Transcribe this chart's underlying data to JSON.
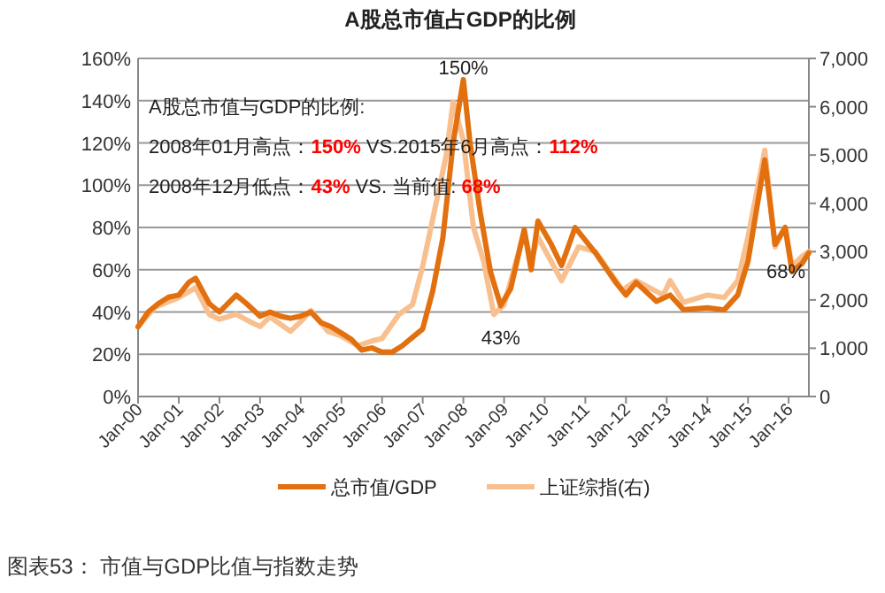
{
  "chart_data": {
    "type": "line",
    "title": "A股总市值占GDP的比例",
    "xlim": [
      "2000-01",
      "2016-07"
    ],
    "xticks": [
      {
        "value": "2000-01",
        "label": "Jan-00"
      },
      {
        "value": "2001-01",
        "label": "Jan-01"
      },
      {
        "value": "2002-01",
        "label": "Jan-02"
      },
      {
        "value": "2003-01",
        "label": "Jan-03"
      },
      {
        "value": "2004-01",
        "label": "Jan-04"
      },
      {
        "value": "2005-01",
        "label": "Jan-05"
      },
      {
        "value": "2006-01",
        "label": "Jan-06"
      },
      {
        "value": "2007-01",
        "label": "Jan-07"
      },
      {
        "value": "2008-01",
        "label": "Jan-08"
      },
      {
        "value": "2009-01",
        "label": "Jan-09"
      },
      {
        "value": "2010-01",
        "label": "Jan-10"
      },
      {
        "value": "2011-01",
        "label": "Jan-11"
      },
      {
        "value": "2012-01",
        "label": "Jan-12"
      },
      {
        "value": "2013-01",
        "label": "Jan-13"
      },
      {
        "value": "2014-01",
        "label": "Jan-14"
      },
      {
        "value": "2015-01",
        "label": "Jan-15"
      },
      {
        "value": "2016-01",
        "label": "Jan-16"
      }
    ],
    "ylim": [
      0,
      160
    ],
    "yticks": [
      {
        "value": 0,
        "label": "0%"
      },
      {
        "value": 20,
        "label": "20%"
      },
      {
        "value": 40,
        "label": "40%"
      },
      {
        "value": 60,
        "label": "60%"
      },
      {
        "value": 80,
        "label": "80%"
      },
      {
        "value": 100,
        "label": "100%"
      },
      {
        "value": 120,
        "label": "120%"
      },
      {
        "value": 140,
        "label": "140%"
      },
      {
        "value": 160,
        "label": "160%"
      }
    ],
    "y2lim": [
      0,
      7000
    ],
    "y2ticks": [
      {
        "value": 0,
        "label": "0"
      },
      {
        "value": 1000,
        "label": "1,000"
      },
      {
        "value": 2000,
        "label": "2,000"
      },
      {
        "value": 3000,
        "label": "3,000"
      },
      {
        "value": 4000,
        "label": "4,000"
      },
      {
        "value": 5000,
        "label": "5,000"
      },
      {
        "value": 6000,
        "label": "6,000"
      },
      {
        "value": 7000,
        "label": "7,000"
      }
    ],
    "grid": "y",
    "legend": "bottom",
    "series": [
      {
        "name": "上证综指(右)",
        "color": "#f9c08f",
        "axis": "y2",
        "x": [
          "2000-01",
          "2000-06",
          "2001-01",
          "2001-06",
          "2001-10",
          "2002-01",
          "2002-06",
          "2002-10",
          "2003-01",
          "2003-04",
          "2003-10",
          "2004-01",
          "2004-04",
          "2004-09",
          "2005-01",
          "2005-06",
          "2005-10",
          "2006-01",
          "2006-06",
          "2006-10",
          "2007-01",
          "2007-05",
          "2007-08",
          "2007-10",
          "2008-01",
          "2008-04",
          "2008-07",
          "2008-10",
          "2009-01",
          "2009-07",
          "2009-09",
          "2009-11",
          "2010-06",
          "2010-11",
          "2011-04",
          "2011-10",
          "2011-12",
          "2012-04",
          "2012-12",
          "2013-02",
          "2013-06",
          "2014-01",
          "2014-06",
          "2014-10",
          "2015-01",
          "2015-06",
          "2015-09",
          "2015-12",
          "2016-02",
          "2016-05",
          "2016-07"
        ],
        "values": [
          1450,
          1850,
          2050,
          2250,
          1700,
          1600,
          1700,
          1550,
          1450,
          1650,
          1350,
          1550,
          1780,
          1350,
          1250,
          1050,
          1150,
          1200,
          1700,
          1900,
          2700,
          4000,
          5000,
          6100,
          5300,
          3500,
          2800,
          1700,
          1900,
          3400,
          2800,
          3300,
          2400,
          3100,
          3000,
          2400,
          2200,
          2400,
          2100,
          2400,
          1950,
          2100,
          2050,
          2400,
          3300,
          5100,
          3100,
          3500,
          2700,
          2900,
          3000
        ]
      },
      {
        "name": "总市值/GDP",
        "color": "#e2700f",
        "axis": "y",
        "x": [
          "2000-01",
          "2000-04",
          "2000-07",
          "2000-10",
          "2001-01",
          "2001-04",
          "2001-06",
          "2001-08",
          "2001-10",
          "2002-01",
          "2002-06",
          "2002-09",
          "2003-01",
          "2003-04",
          "2003-07",
          "2003-10",
          "2004-01",
          "2004-04",
          "2004-07",
          "2004-10",
          "2005-01",
          "2005-04",
          "2005-07",
          "2005-10",
          "2006-01",
          "2006-04",
          "2006-07",
          "2006-10",
          "2007-01",
          "2007-04",
          "2007-07",
          "2007-10",
          "2008-01",
          "2008-03",
          "2008-06",
          "2008-09",
          "2008-12",
          "2009-03",
          "2009-07",
          "2009-09",
          "2009-11",
          "2010-03",
          "2010-06",
          "2010-10",
          "2011-04",
          "2011-10",
          "2012-01",
          "2012-04",
          "2012-10",
          "2013-02",
          "2013-06",
          "2014-01",
          "2014-06",
          "2014-10",
          "2015-01",
          "2015-06",
          "2015-09",
          "2015-12",
          "2016-02",
          "2016-05",
          "2016-07"
        ],
        "values": [
          33,
          40,
          44,
          47,
          48,
          54,
          56,
          50,
          44,
          40,
          48,
          44,
          38,
          40,
          38,
          37,
          38,
          40,
          35,
          33,
          30,
          27,
          22,
          23,
          21,
          21,
          24,
          28,
          32,
          50,
          75,
          120,
          150,
          120,
          87,
          59,
          43,
          51,
          79,
          60,
          83,
          72,
          62,
          80,
          68,
          54,
          48,
          54,
          45,
          48,
          41,
          42,
          41,
          48,
          64,
          112,
          72,
          80,
          59,
          63,
          68
        ]
      }
    ],
    "annotations": [
      "A股总市值与GDP的比例:",
      "2008年01月高点：150% VS.2015年6月高点：112%",
      "2008年12月低点：43% VS. 当前值: 68%",
      {
        "text": "150%",
        "x": "2008-01",
        "y": 150
      },
      {
        "text": "43%",
        "x": "2008-12",
        "y": 43
      },
      {
        "text": "68%",
        "x": "2016-07",
        "y": 68
      },
      "图表53： 市值与GDP比值与指数走势"
    ]
  }
}
